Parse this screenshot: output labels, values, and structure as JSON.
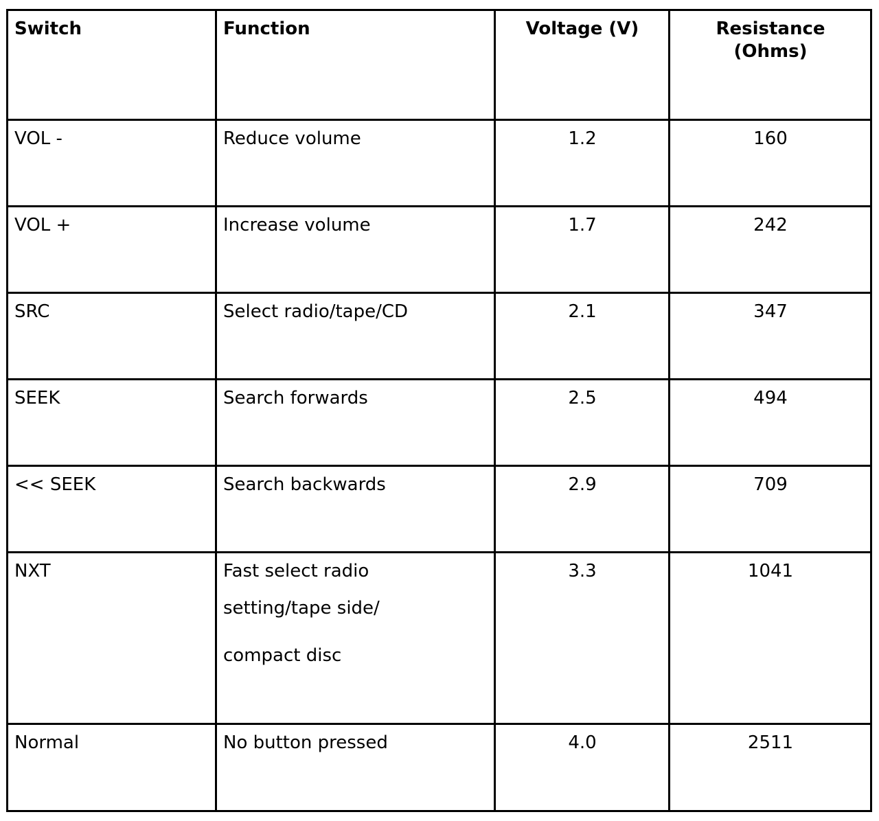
{
  "table": {
    "headers": {
      "switch": "Switch",
      "function": "Function",
      "voltage": "Voltage (V)",
      "resistance": "Resistance (Ohms)"
    },
    "rows": [
      {
        "switch": "VOL -",
        "function": [
          "Reduce volume"
        ],
        "voltage": "1.2",
        "resistance": "160"
      },
      {
        "switch": "VOL +",
        "function": [
          "Increase volume"
        ],
        "voltage": "1.7",
        "resistance": "242"
      },
      {
        "switch": "SRC",
        "function": [
          "Select radio/tape/CD"
        ],
        "voltage": "2.1",
        "resistance": "347"
      },
      {
        "switch": "SEEK",
        "function": [
          "Search forwards"
        ],
        "voltage": "2.5",
        "resistance": "494"
      },
      {
        "switch": "<< SEEK",
        "function": [
          "Search backwards"
        ],
        "voltage": "2.9",
        "resistance": "709"
      },
      {
        "switch": "NXT",
        "function": [
          "Fast select radio",
          "setting/tape side/",
          "compact disc"
        ],
        "voltage": "3.3",
        "resistance": "1041"
      },
      {
        "switch": "Normal",
        "function": [
          "No button pressed"
        ],
        "voltage": "4.0",
        "resistance": "2511"
      }
    ]
  }
}
